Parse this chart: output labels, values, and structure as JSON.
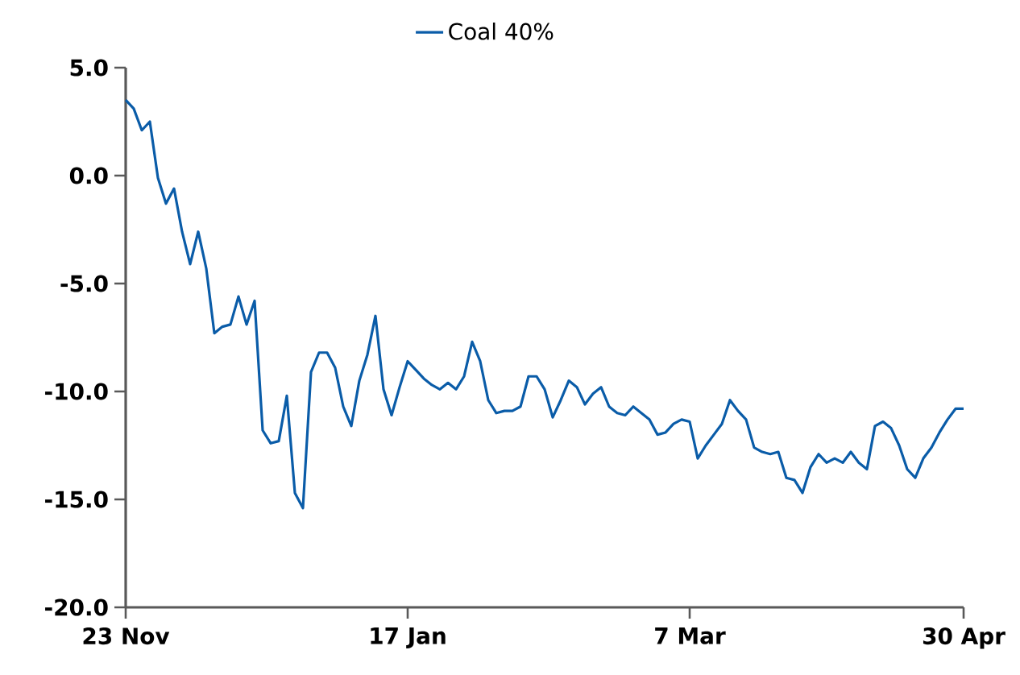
{
  "chart_data": {
    "type": "line",
    "legend": "top",
    "categories": [
      "23 Nov",
      null,
      null,
      null,
      null,
      null,
      null,
      null,
      null,
      null,
      null,
      null,
      null,
      null,
      null,
      null,
      null,
      null,
      null,
      null,
      null,
      null,
      null,
      null,
      null,
      null,
      null,
      null,
      null,
      null,
      null,
      null,
      null,
      null,
      null,
      "17 Jan",
      null,
      null,
      null,
      null,
      null,
      null,
      null,
      null,
      null,
      null,
      null,
      null,
      null,
      null,
      null,
      null,
      null,
      null,
      null,
      null,
      null,
      null,
      null,
      null,
      null,
      null,
      null,
      null,
      null,
      null,
      null,
      null,
      null,
      null,
      "7 Mar",
      null,
      null,
      null,
      null,
      null,
      null,
      null,
      null,
      null,
      null,
      null,
      null,
      null,
      null,
      null,
      null,
      null,
      null,
      null,
      null,
      null,
      null,
      null,
      null,
      null,
      null,
      null,
      null,
      null,
      null,
      null,
      null,
      null,
      "30 Apr"
    ],
    "series": [
      {
        "name": "Coal 40%",
        "color": "#0a5ca8",
        "values": [
          3.5,
          3.1,
          2.1,
          2.5,
          -0.1,
          -1.3,
          -0.6,
          -2.6,
          -4.1,
          -2.6,
          -4.3,
          -7.3,
          -7.0,
          -6.9,
          -5.6,
          -6.9,
          -5.8,
          -11.8,
          -12.4,
          -12.3,
          -10.2,
          -14.7,
          -15.4,
          -9.1,
          -8.2,
          -8.2,
          -8.9,
          -10.7,
          -11.6,
          -9.5,
          -8.3,
          -6.5,
          -9.9,
          -11.1,
          -9.8,
          -8.6,
          -9.0,
          -9.4,
          -9.7,
          -9.9,
          -9.6,
          -9.9,
          -9.3,
          -7.7,
          -8.6,
          -10.4,
          -11.0,
          -10.9,
          -10.9,
          -10.7,
          -9.3,
          -9.3,
          -9.9,
          -11.2,
          -10.4,
          -9.5,
          -9.8,
          -10.6,
          -10.1,
          -9.8,
          -10.7,
          -11.0,
          -11.1,
          -10.7,
          -11.0,
          -11.3,
          -12.0,
          -11.9,
          -11.5,
          -11.3,
          -11.4,
          -13.1,
          -12.5,
          -12.0,
          -11.5,
          -10.4,
          -10.9,
          -11.3,
          -12.6,
          -12.8,
          -12.9,
          -12.8,
          -14.0,
          -14.1,
          -14.7,
          -13.5,
          -12.9,
          -13.3,
          -13.1,
          -13.3,
          -12.8,
          -13.3,
          -13.6,
          -11.6,
          -11.4,
          -11.7,
          -12.5,
          -13.6,
          -14.0,
          -13.1,
          -12.6,
          -11.9,
          -11.3,
          -10.8,
          -10.8
        ]
      }
    ],
    "ylim": [
      -20,
      5
    ],
    "yticks": [
      {
        "value": -20,
        "label": "-20.0"
      },
      {
        "value": -15,
        "label": "-15.0"
      },
      {
        "value": -10,
        "label": "-10.0"
      },
      {
        "value": -5,
        "label": "-5.0"
      },
      {
        "value": 0,
        "label": "0.0"
      },
      {
        "value": 5,
        "label": "5.0"
      }
    ]
  }
}
